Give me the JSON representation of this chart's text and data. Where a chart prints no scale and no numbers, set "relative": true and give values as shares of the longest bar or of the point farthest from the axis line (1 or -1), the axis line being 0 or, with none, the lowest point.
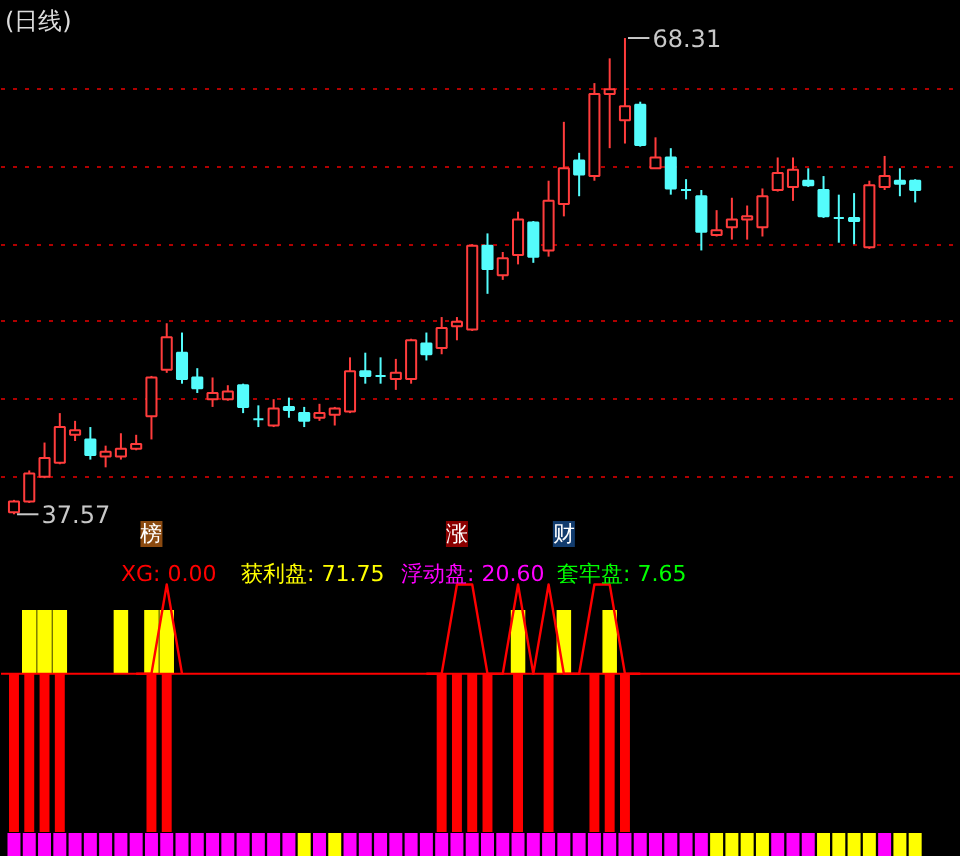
{
  "chart_data": [
    {
      "type": "candlestick",
      "title": "(日线)",
      "categories": [
        null,
        null,
        null,
        null,
        null,
        null,
        null,
        null,
        null,
        null,
        null,
        null,
        null,
        null,
        null,
        null,
        null,
        null,
        null,
        null,
        null,
        null,
        null,
        null,
        null,
        null,
        null,
        null,
        null,
        null,
        null,
        null,
        null,
        null,
        null,
        null,
        null,
        null,
        null,
        null,
        null,
        null,
        null,
        null,
        null,
        null,
        null,
        null,
        null,
        null,
        null,
        null,
        null,
        null,
        null,
        null,
        null,
        null,
        null,
        null
      ],
      "ohlc": [
        [
          37.7,
          38.5,
          37.57,
          38.4
        ],
        [
          38.4,
          40.4,
          38.3,
          40.2
        ],
        [
          40.0,
          42.2,
          39.9,
          41.2
        ],
        [
          40.9,
          44.1,
          40.8,
          43.2
        ],
        [
          42.7,
          43.6,
          42.3,
          43.0
        ],
        [
          42.4,
          43.2,
          41.1,
          41.4
        ],
        [
          41.3,
          42.0,
          40.6,
          41.6
        ],
        [
          41.3,
          42.8,
          41.1,
          41.8
        ],
        [
          41.8,
          42.7,
          41.7,
          42.1
        ],
        [
          43.9,
          46.5,
          42.4,
          46.4
        ],
        [
          46.9,
          49.9,
          46.7,
          49.0
        ],
        [
          48.0,
          49.3,
          46.0,
          46.3
        ],
        [
          46.4,
          47.0,
          45.4,
          45.7
        ],
        [
          45.0,
          46.4,
          44.5,
          45.4
        ],
        [
          45.0,
          45.9,
          44.9,
          45.5
        ],
        [
          45.9,
          46.0,
          44.1,
          44.5
        ],
        [
          43.7,
          44.6,
          43.2,
          43.7
        ],
        [
          43.3,
          45.0,
          43.2,
          44.4
        ],
        [
          44.5,
          45.1,
          43.8,
          44.3
        ],
        [
          44.1,
          44.5,
          43.2,
          43.6
        ],
        [
          43.8,
          44.7,
          43.6,
          44.1
        ],
        [
          44.0,
          44.5,
          43.3,
          44.4
        ],
        [
          44.2,
          47.7,
          44.1,
          46.8
        ],
        [
          46.8,
          48.0,
          46.0,
          46.5
        ],
        [
          46.5,
          47.7,
          46.0,
          46.5
        ],
        [
          46.3,
          47.6,
          45.6,
          46.7
        ],
        [
          46.3,
          48.9,
          46.0,
          48.8
        ],
        [
          48.6,
          49.3,
          47.5,
          47.9
        ],
        [
          48.3,
          50.3,
          47.9,
          49.6
        ],
        [
          49.7,
          50.3,
          48.8,
          50.0
        ],
        [
          49.5,
          55.0,
          49.4,
          54.9
        ],
        [
          54.9,
          55.7,
          51.8,
          53.4
        ],
        [
          53.0,
          54.5,
          52.7,
          54.1
        ],
        [
          54.3,
          57.1,
          53.7,
          56.6
        ],
        [
          56.4,
          56.5,
          53.8,
          54.2
        ],
        [
          54.6,
          59.1,
          54.2,
          57.8
        ],
        [
          57.6,
          62.9,
          56.8,
          59.9
        ],
        [
          60.4,
          60.9,
          58.1,
          59.5
        ],
        [
          59.4,
          65.4,
          59.1,
          64.7
        ],
        [
          64.7,
          67.0,
          61.2,
          65.0
        ],
        [
          63.0,
          68.31,
          61.5,
          63.9
        ],
        [
          64.0,
          64.2,
          61.3,
          61.4
        ],
        [
          59.9,
          61.9,
          59.9,
          60.6
        ],
        [
          60.6,
          61.2,
          58.2,
          58.6
        ],
        [
          58.5,
          59.2,
          57.9,
          58.5
        ],
        [
          58.1,
          58.5,
          54.6,
          55.8
        ],
        [
          55.6,
          57.2,
          55.5,
          55.9
        ],
        [
          56.1,
          58.0,
          55.3,
          56.6
        ],
        [
          56.6,
          57.5,
          55.3,
          56.8
        ],
        [
          56.1,
          58.6,
          55.5,
          58.1
        ],
        [
          58.5,
          60.6,
          58.4,
          59.6
        ],
        [
          58.7,
          60.6,
          57.8,
          59.8
        ],
        [
          59.1,
          59.9,
          58.7,
          58.8
        ],
        [
          58.5,
          59.4,
          56.7,
          56.8
        ],
        [
          56.7,
          58.2,
          55.1,
          56.7
        ],
        [
          56.7,
          58.3,
          55.0,
          56.5
        ],
        [
          54.8,
          59.1,
          54.7,
          58.8
        ],
        [
          58.7,
          60.7,
          58.5,
          59.4
        ],
        [
          59.1,
          59.9,
          58.1,
          58.9
        ],
        [
          59.1,
          59.2,
          57.7,
          58.5
        ]
      ],
      "colors": [
        "#ff3c3c",
        "#ff3c3c",
        "#ff3c3c",
        "#ff3c3c",
        "#ff3c3c",
        "#54fcfc",
        "#ff3c3c",
        "#ff3c3c",
        "#ff3c3c",
        "#ff3c3c",
        "#ff3c3c",
        "#54fcfc",
        "#54fcfc",
        "#ff3c3c",
        "#ff3c3c",
        "#54fcfc",
        "#54fcfc",
        "#ff3c3c",
        "#54fcfc",
        "#54fcfc",
        "#ff3c3c",
        "#ff3c3c",
        "#ff3c3c",
        "#54fcfc",
        "#54fcfc",
        "#ff3c3c",
        "#ff3c3c",
        "#54fcfc",
        "#ff3c3c",
        "#ff3c3c",
        "#ff3c3c",
        "#54fcfc",
        "#ff3c3c",
        "#ff3c3c",
        "#54fcfc",
        "#ff3c3c",
        "#ff3c3c",
        "#54fcfc",
        "#ff3c3c",
        "#ff3c3c",
        "#ff3c3c",
        "#54fcfc",
        "#ff3c3c",
        "#54fcfc",
        "#54fcfc",
        "#54fcfc",
        "#ff3c3c",
        "#ff3c3c",
        "#ff3c3c",
        "#ff3c3c",
        "#ff3c3c",
        "#ff3c3c",
        "#54fcfc",
        "#54fcfc",
        "#54fcfc",
        "#54fcfc",
        "#ff3c3c",
        "#ff3c3c",
        "#54fcfc",
        "#54fcfc"
      ],
      "ylim": [
        35.2,
        70.7
      ],
      "yticks": [
        {
          "value": 40,
          "label": null
        },
        {
          "value": 45,
          "label": null
        },
        {
          "value": 50,
          "label": null
        },
        {
          "value": 55,
          "label": null
        },
        {
          "value": 60,
          "label": null
        },
        {
          "value": 65,
          "label": null
        }
      ],
      "grid": "y",
      "tick_labels": false,
      "annotations": [
        "68.31",
        "37.57",
        "榜",
        "涨",
        "财"
      ]
    },
    {
      "type": "line",
      "relative": true,
      "categories": [
        null,
        null,
        null,
        null,
        null,
        null,
        null,
        null,
        null,
        null,
        null,
        null,
        null,
        null,
        null,
        null,
        null,
        null,
        null,
        null,
        null,
        null,
        null,
        null,
        null,
        null,
        null,
        null,
        null,
        null,
        null,
        null,
        null,
        null,
        null,
        null,
        null,
        null,
        null,
        null,
        null,
        null,
        null,
        null,
        null,
        null,
        null,
        null,
        null,
        null,
        null,
        null,
        null,
        null,
        null,
        null,
        null,
        null,
        null,
        null
      ],
      "series": [
        {
          "type": "bar",
          "color": "#ffff00",
          "values": [
            null,
            0.4,
            0.4,
            0.4,
            null,
            null,
            null,
            0.4,
            null,
            0.4,
            0.4,
            null,
            null,
            null,
            null,
            null,
            null,
            null,
            null,
            null,
            null,
            null,
            null,
            null,
            null,
            null,
            null,
            null,
            null,
            null,
            null,
            null,
            null,
            0.4,
            null,
            null,
            0.4,
            null,
            null,
            0.4,
            null,
            null,
            null,
            null,
            null,
            null,
            null,
            null,
            null,
            null,
            null,
            null,
            null,
            null,
            null,
            null,
            null,
            null,
            null,
            null
          ]
        },
        {
          "type": "bar",
          "color": "#ff0000",
          "values": [
            -1,
            -1,
            -1,
            -1,
            null,
            null,
            null,
            null,
            null,
            -1,
            -1,
            null,
            null,
            null,
            null,
            null,
            null,
            null,
            null,
            null,
            null,
            null,
            null,
            null,
            null,
            null,
            null,
            null,
            -1,
            -1,
            -1,
            -1,
            null,
            -1,
            null,
            -1,
            null,
            null,
            -1,
            -1,
            -1,
            null,
            null,
            null,
            null,
            null,
            null,
            null,
            null,
            null,
            null,
            null,
            null,
            null,
            null,
            null,
            null,
            null,
            null,
            null
          ]
        },
        {
          "type": "line",
          "color": "#ff0000",
          "values": [
            null,
            null,
            null,
            null,
            null,
            null,
            null,
            null,
            0,
            0,
            0.56,
            0,
            null,
            null,
            null,
            null,
            null,
            null,
            null,
            null,
            null,
            null,
            null,
            null,
            null,
            null,
            null,
            0,
            0,
            0.56,
            0.56,
            0,
            0,
            0.56,
            0,
            0.56,
            0,
            0,
            0.56,
            0.56,
            0,
            0,
            null,
            null,
            null,
            null,
            null,
            null,
            null,
            null,
            null,
            null,
            null,
            null,
            null,
            null,
            null,
            null,
            null,
            null
          ]
        }
      ],
      "ref_lines": [
        {
          "axis": "y",
          "value": 0,
          "color": "#ff0000",
          "line_style": "solid"
        }
      ],
      "annotations": [
        "XG: 0.00",
        "获利盘: 71.75",
        "浮动盘: 20.60",
        "套牢盘: 7.65"
      ]
    },
    {
      "type": "bar",
      "relative": true,
      "categories": [
        null,
        null,
        null,
        null,
        null,
        null,
        null,
        null,
        null,
        null,
        null,
        null,
        null,
        null,
        null,
        null,
        null,
        null,
        null,
        null,
        null,
        null,
        null,
        null,
        null,
        null,
        null,
        null,
        null,
        null,
        null,
        null,
        null,
        null,
        null,
        null,
        null,
        null,
        null,
        null,
        null,
        null,
        null,
        null,
        null,
        null,
        null,
        null,
        null,
        null,
        null,
        null,
        null,
        null,
        null,
        null,
        null,
        null,
        null,
        null
      ],
      "values": [
        1,
        1,
        1,
        1,
        1,
        1,
        1,
        1,
        1,
        1,
        1,
        1,
        1,
        1,
        1,
        1,
        1,
        1,
        1,
        1,
        1,
        1,
        1,
        1,
        1,
        1,
        1,
        1,
        1,
        1,
        1,
        1,
        1,
        1,
        1,
        1,
        1,
        1,
        1,
        1,
        1,
        1,
        1,
        1,
        1,
        1,
        1,
        1,
        1,
        1,
        1,
        1,
        1,
        1,
        1,
        1,
        1,
        1,
        1,
        1
      ],
      "colors": [
        "#ff00ff",
        "#ff00ff",
        "#ff00ff",
        "#ff00ff",
        "#ff00ff",
        "#ff00ff",
        "#ff00ff",
        "#ff00ff",
        "#ff00ff",
        "#ff00ff",
        "#ff00ff",
        "#ff00ff",
        "#ff00ff",
        "#ff00ff",
        "#ff00ff",
        "#ff00ff",
        "#ff00ff",
        "#ff00ff",
        "#ff00ff",
        "#ffff00",
        "#ff00ff",
        "#ffff00",
        "#ff00ff",
        "#ff00ff",
        "#ff00ff",
        "#ff00ff",
        "#ff00ff",
        "#ff00ff",
        "#ff00ff",
        "#ff00ff",
        "#ff00ff",
        "#ff00ff",
        "#ff00ff",
        "#ff00ff",
        "#ff00ff",
        "#ff00ff",
        "#ff00ff",
        "#ff00ff",
        "#ff00ff",
        "#ff00ff",
        "#ff00ff",
        "#ff00ff",
        "#ff00ff",
        "#ff00ff",
        "#ff00ff",
        "#ff00ff",
        "#ffff00",
        "#ffff00",
        "#ffff00",
        "#ffff00",
        "#ff00ff",
        "#ff00ff",
        "#ff00ff",
        "#ffff00",
        "#ffff00",
        "#ffff00",
        "#ffff00",
        "#ff00ff",
        "#ffff00",
        "#ffff00"
      ]
    }
  ]
}
